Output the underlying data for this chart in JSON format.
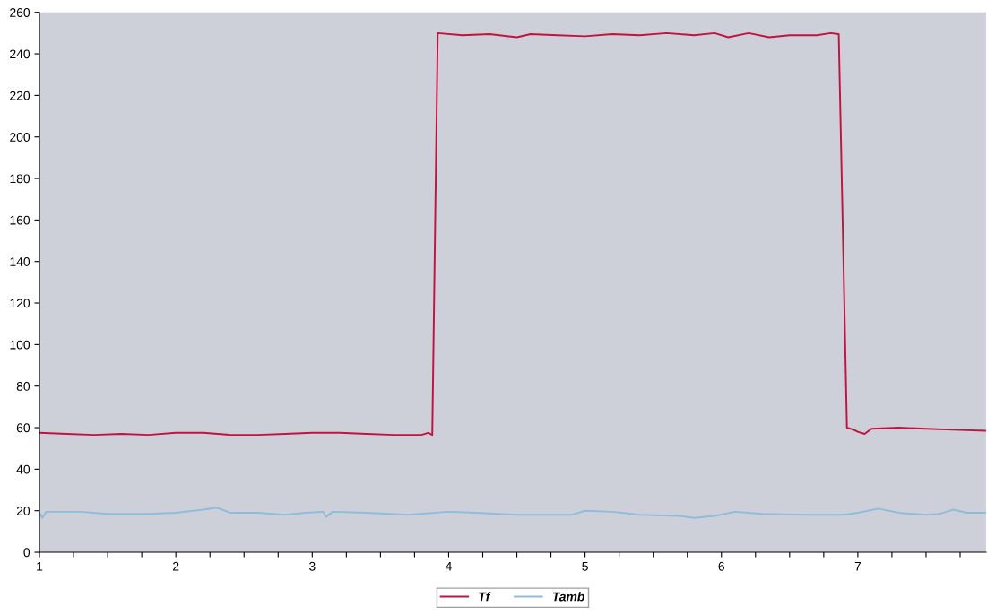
{
  "chart_data": {
    "type": "line",
    "xlim": [
      1,
      7.94
    ],
    "xticks": [
      1,
      {
        "value": 1.25,
        "label": null
      },
      {
        "value": 1.5,
        "label": null
      },
      {
        "value": 1.75,
        "label": null
      },
      2,
      {
        "value": 2.25,
        "label": null
      },
      {
        "value": 2.5,
        "label": null
      },
      {
        "value": 2.75,
        "label": null
      },
      3,
      {
        "value": 3.25,
        "label": null
      },
      {
        "value": 3.5,
        "label": null
      },
      {
        "value": 3.75,
        "label": null
      },
      4,
      {
        "value": 4.25,
        "label": null
      },
      {
        "value": 4.5,
        "label": null
      },
      {
        "value": 4.75,
        "label": null
      },
      5,
      {
        "value": 5.25,
        "label": null
      },
      {
        "value": 5.5,
        "label": null
      },
      {
        "value": 5.75,
        "label": null
      },
      6,
      {
        "value": 6.25,
        "label": null
      },
      {
        "value": 6.5,
        "label": null
      },
      {
        "value": 6.75,
        "label": null
      },
      7,
      {
        "value": 7.25,
        "label": null
      },
      {
        "value": 7.5,
        "label": null
      },
      {
        "value": 7.75,
        "label": null
      }
    ],
    "ylim": [
      0,
      260
    ],
    "yticks": [
      0,
      20,
      40,
      60,
      80,
      100,
      120,
      140,
      160,
      180,
      200,
      220,
      240,
      260
    ],
    "grid": false,
    "legend": "bottom",
    "marker": "none",
    "line_style": "solid",
    "series": [
      {
        "name": "Tf",
        "color": "#c0143f",
        "x": [
          1.0,
          1.2,
          1.4,
          1.6,
          1.8,
          2.0,
          2.2,
          2.4,
          2.6,
          2.8,
          3.0,
          3.2,
          3.4,
          3.6,
          3.8,
          3.85,
          3.88,
          3.92,
          4.1,
          4.3,
          4.5,
          4.6,
          4.8,
          5.0,
          5.2,
          5.4,
          5.6,
          5.8,
          5.95,
          6.05,
          6.2,
          6.35,
          6.5,
          6.7,
          6.8,
          6.86,
          6.92,
          6.97,
          7.0,
          7.05,
          7.1,
          7.3,
          7.5,
          7.7,
          7.94
        ],
        "values": [
          57.5,
          57,
          56.5,
          57,
          56.5,
          57.5,
          57.5,
          56.5,
          56.5,
          57,
          57.5,
          57.5,
          57,
          56.5,
          56.5,
          57.5,
          56.5,
          250,
          249,
          249.5,
          248,
          249.5,
          249,
          248.5,
          249.5,
          249,
          250,
          249,
          250,
          248,
          250,
          248,
          249,
          249,
          250,
          249.5,
          60,
          59,
          58,
          57,
          59.5,
          60,
          59.5,
          59,
          58.5
        ]
      },
      {
        "name": "Tamb",
        "color": "#8fbcdc",
        "x": [
          1.0,
          1.02,
          1.05,
          1.3,
          1.5,
          1.8,
          2.0,
          2.2,
          2.3,
          2.4,
          2.6,
          2.8,
          2.95,
          3.08,
          3.1,
          3.15,
          3.4,
          3.7,
          4.0,
          4.2,
          4.5,
          4.9,
          5.0,
          5.2,
          5.4,
          5.7,
          5.8,
          5.95,
          6.1,
          6.3,
          6.6,
          6.9,
          7.0,
          7.15,
          7.3,
          7.5,
          7.6,
          7.7,
          7.8,
          7.94
        ],
        "values": [
          19,
          16.5,
          19.5,
          19.5,
          18.5,
          18.5,
          19,
          20.5,
          21.5,
          19,
          19,
          18,
          19,
          19.5,
          17,
          19.5,
          19,
          18,
          19.5,
          19,
          18,
          18,
          20,
          19.5,
          18,
          17.5,
          16.5,
          17.5,
          19.5,
          18.5,
          18,
          18,
          19,
          21,
          19,
          18,
          18.5,
          20.5,
          19,
          19
        ]
      }
    ]
  }
}
